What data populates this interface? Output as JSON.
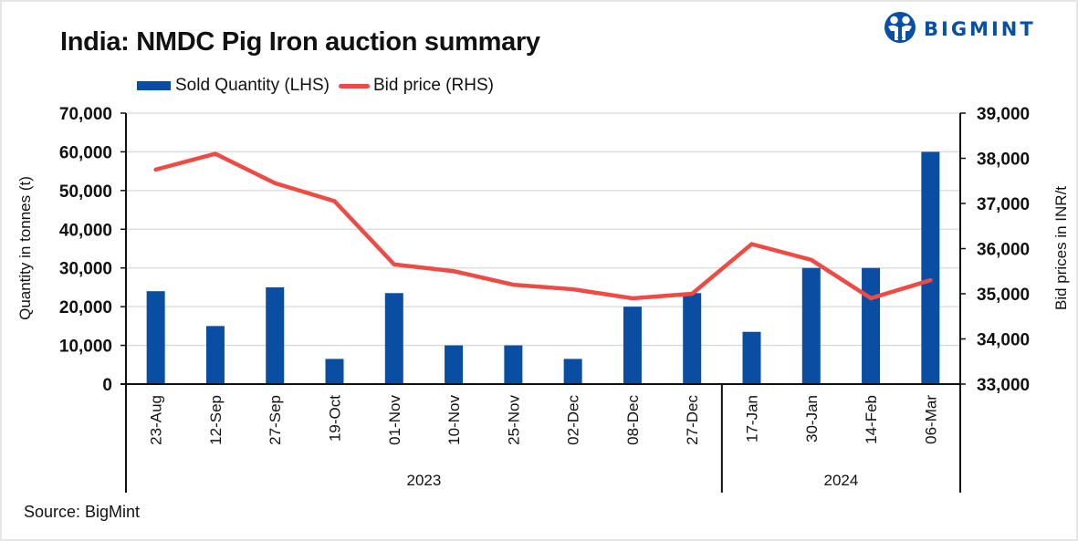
{
  "header": {
    "title": "India: NMDC Pig Iron auction summary",
    "logo_text": "BIGMINT"
  },
  "legend": {
    "items": [
      {
        "label": "Sold Quantity (LHS)",
        "kind": "bar",
        "color": "#0a4ea3"
      },
      {
        "label": "Bid price (RHS)",
        "kind": "line",
        "color": "#ef4b45"
      }
    ]
  },
  "footer": {
    "source": "Source: BigMint"
  },
  "colors": {
    "bar": "#0a4ea3",
    "line": "#ef4b45",
    "grid": "#d9d9d9",
    "axis": "#111111",
    "logo": "#0a4fa6"
  },
  "chart_data": {
    "type": "bar+line",
    "title": "India: NMDC Pig Iron auction summary",
    "categories": [
      "23-Aug",
      "12-Sep",
      "27-Sep",
      "19-Oct",
      "01-Nov",
      "10-Nov",
      "25-Nov",
      "02-Dec",
      "08-Dec",
      "27-Dec",
      "17-Jan",
      "30-Jan",
      "14-Feb",
      "06-Mar"
    ],
    "category_groups": [
      {
        "label": "2023",
        "count": 10
      },
      {
        "label": "2024",
        "count": 4
      }
    ],
    "series": [
      {
        "name": "Sold Quantity (LHS)",
        "type": "bar",
        "axis": "left",
        "values": [
          24000,
          15000,
          25000,
          6500,
          23500,
          10000,
          10000,
          6500,
          20000,
          23500,
          13500,
          30000,
          30000,
          60000
        ]
      },
      {
        "name": "Bid price (RHS)",
        "type": "line",
        "axis": "right",
        "values": [
          37750,
          38100,
          37450,
          37050,
          35650,
          35500,
          35200,
          35100,
          34900,
          35000,
          36100,
          35750,
          34900,
          35300
        ]
      }
    ],
    "ylabel": "Quantity in tonnes (t)",
    "ylabel_right": "Bid prices in INR/t",
    "xlabel": "",
    "ylim": [
      0,
      70000
    ],
    "ylim_right": [
      33000,
      39000
    ],
    "yticks": [
      "0",
      "10,000",
      "20,000",
      "30,000",
      "40,000",
      "50,000",
      "60,000",
      "70,000"
    ],
    "yticks_right": [
      "33,000",
      "34,000",
      "35,000",
      "36,000",
      "37,000",
      "38,000",
      "39,000"
    ],
    "grid": true,
    "legend_position": "top-left"
  }
}
